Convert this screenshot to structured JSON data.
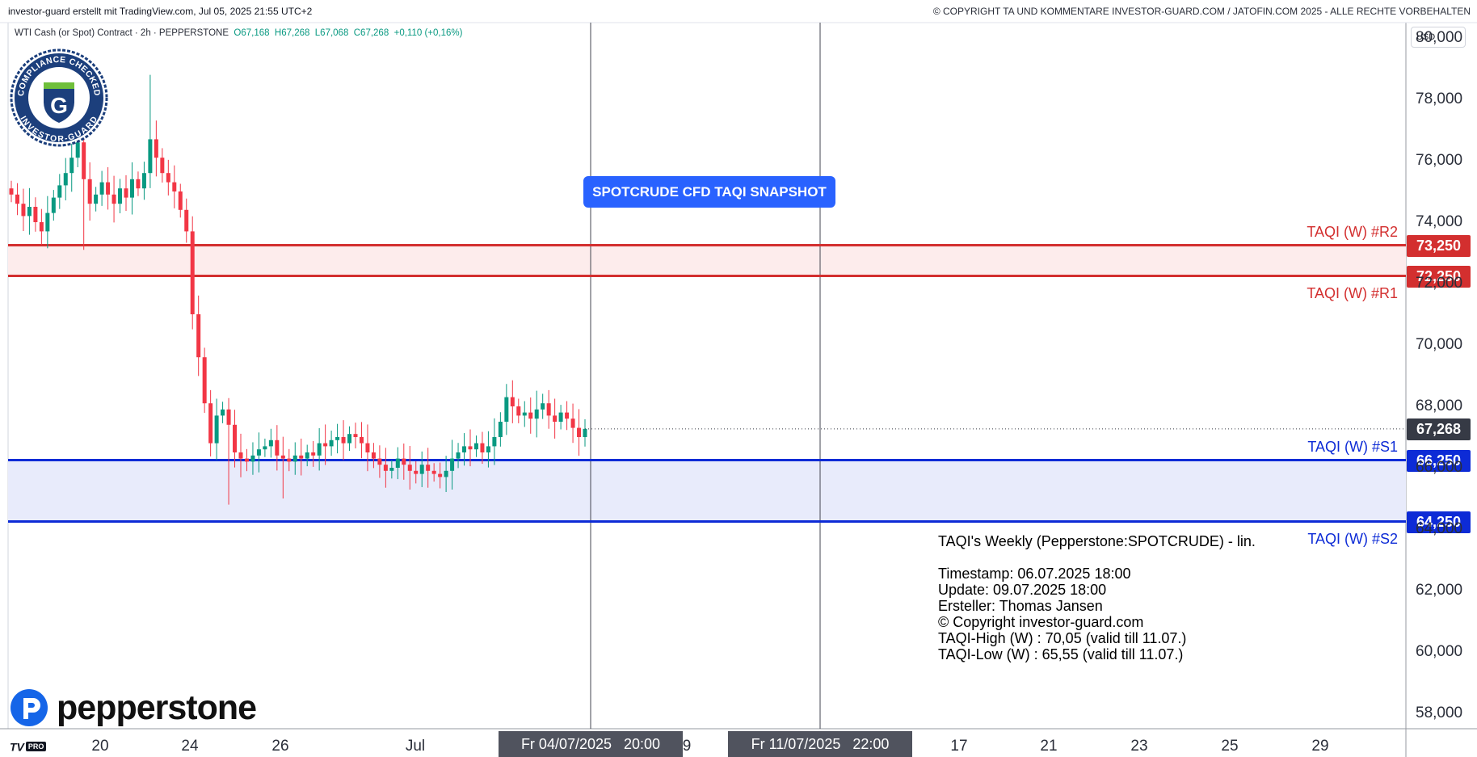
{
  "header": {
    "left": "investor-guard erstellt mit TradingView.com, Jul 05, 2025 21:55 UTC+2",
    "right": "© COPYRIGHT TA UND KOMMENTARE INVESTOR-GUARD.COM / JATOFIN.COM 2025 - ALLE RECHTE VORBEHALTEN"
  },
  "symbol": {
    "name": "WTI Cash (or Spot) Contract · 2h · PEPPERSTONE",
    "open": "O67,168",
    "high": "H67,268",
    "low": "L67,068",
    "close": "C67,268",
    "change": "+0,110 (+0,16%)"
  },
  "badge": {
    "top_text": "COMPLIANCE CHECKED",
    "bottom_text": "INVESTOR-GUARD",
    "letter": "G"
  },
  "brand": {
    "name": "pepperstone",
    "platform": "TV",
    "platform_badge": "PRO"
  },
  "currency_button": "USD",
  "snapshot_label": "SPOTCRUDE CFD TAQI SNAPSHOT",
  "info_box": [
    "TAQI's Weekly (Pepperstone:SPOTCRUDE) - lin.",
    "",
    "Timestamp: 06.07.2025 18:00",
    "Update: 09.07.2025 18:00",
    "Ersteller: Thomas Jansen",
    "© Copyright investor-guard.com",
    "TAQI-High (W) : 70,05 (valid till 11.07.)",
    "TAQI-Low (W) : 65,55 (valid till 11.07.)"
  ],
  "colors": {
    "up": "#089981",
    "down": "#f23645",
    "resistance": "#d32f2f",
    "support": "#0d2bd6",
    "resistance_zone": "#fdecec",
    "support_zone": "#e8ebfb",
    "last_price": "#363a45",
    "tag_grey": "#50535e"
  },
  "chart_data": {
    "type": "candlestick",
    "yaxis": {
      "min": 57.5,
      "max": 80.5,
      "ticks": [
        "58,000",
        "60,000",
        "62,000",
        "64,000",
        "66,000",
        "68,000",
        "70,000",
        "72,000",
        "74,000",
        "76,000",
        "78,000",
        "80,000"
      ],
      "tick_values": [
        58,
        60,
        62,
        64,
        66,
        68,
        70,
        72,
        74,
        76,
        78,
        80
      ],
      "side": "right",
      "unit": "USD"
    },
    "xaxis": {
      "ticks": [
        "20",
        "24",
        "26",
        "Jul",
        "9",
        "17",
        "21",
        "23",
        "25",
        "29"
      ]
    },
    "time_markers": [
      {
        "label_date": "Fr 04/07/2025",
        "label_time": "20:00"
      },
      {
        "label_date": "Fr 11/07/2025",
        "label_time": "22:00"
      }
    ],
    "levels": [
      {
        "name": "TAQI (W) #R2",
        "value": 73.25,
        "label": "73,250",
        "kind": "resistance"
      },
      {
        "name": "TAQI (W) #R1",
        "value": 72.25,
        "label": "72,250",
        "kind": "resistance"
      },
      {
        "name": "TAQI (W) #S1",
        "value": 66.25,
        "label": "66,250",
        "kind": "support"
      },
      {
        "name": "TAQI (W) #S2",
        "value": 64.25,
        "label": "64,250",
        "kind": "support"
      }
    ],
    "last_price": {
      "value": 67.268,
      "label": "67,268"
    },
    "series_close": [
      74.9,
      74.6,
      74.2,
      74.5,
      74.0,
      73.7,
      74.3,
      74.8,
      75.2,
      75.6,
      76.1,
      76.6,
      75.4,
      74.6,
      74.9,
      75.3,
      74.9,
      74.6,
      75.1,
      74.8,
      75.4,
      75.1,
      75.6,
      76.7,
      76.1,
      75.6,
      75.3,
      75.0,
      74.4,
      73.7,
      71.0,
      69.6,
      68.1,
      66.8,
      67.7,
      67.9,
      67.4,
      66.5,
      66.3,
      66.2,
      66.4,
      66.6,
      66.7,
      66.9,
      66.4,
      66.3,
      66.2,
      66.4,
      66.3,
      66.5,
      66.4,
      66.8,
      66.7,
      66.9,
      67.0,
      66.8,
      67.1,
      67.0,
      66.8,
      66.5,
      66.3,
      66.1,
      65.9,
      66.0,
      66.3,
      66.1,
      65.9,
      65.8,
      66.1,
      65.9,
      65.8,
      65.7,
      65.9,
      66.3,
      66.5,
      66.7,
      66.6,
      66.8,
      66.5,
      66.7,
      67.0,
      67.5,
      68.3,
      68.0,
      67.7,
      67.8,
      67.6,
      67.9,
      68.1,
      67.7,
      67.5,
      67.8,
      67.6,
      67.3,
      67.0,
      67.268
    ]
  }
}
